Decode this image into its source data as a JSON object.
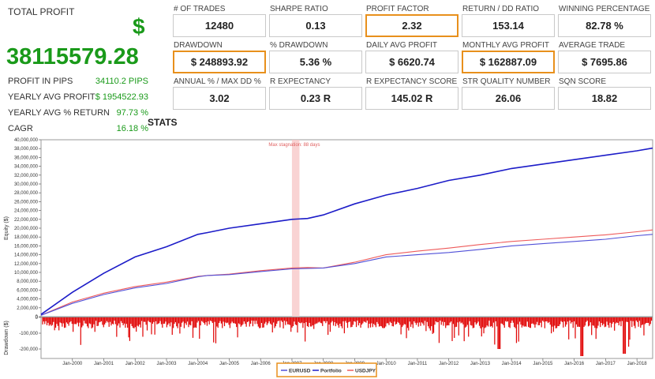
{
  "summary": {
    "total_profit_label": "TOTAL PROFIT",
    "currency_symbol": "$",
    "total_profit_value": "38115579.28",
    "rows": [
      {
        "label": "PROFIT IN PIPS",
        "value": "34110.2 PIPS"
      },
      {
        "label": "YEARLY AVG PROFIT",
        "value": "$ 1954522.93"
      },
      {
        "label": "YEARLY AVG % RETURN",
        "value": "97.73 %"
      },
      {
        "label": "CAGR",
        "value": "16.18 %"
      }
    ]
  },
  "stats_title": "STATS",
  "tiles": [
    {
      "label": "# OF TRADES",
      "value": "12480",
      "highlight": false
    },
    {
      "label": "SHARPE RATIO",
      "value": "0.13",
      "highlight": false
    },
    {
      "label": "PROFIT FACTOR",
      "value": "2.32",
      "highlight": true
    },
    {
      "label": "RETURN / DD RATIO",
      "value": "153.14",
      "highlight": false
    },
    {
      "label": "WINNING PERCENTAGE",
      "value": "82.78 %",
      "highlight": false
    },
    {
      "label": "DRAWDOWN",
      "value": "$ 248893.92",
      "highlight": true
    },
    {
      "label": "% DRAWDOWN",
      "value": "5.36 %",
      "highlight": false
    },
    {
      "label": "DAILY AVG PROFIT",
      "value": "$ 6620.74",
      "highlight": false
    },
    {
      "label": "MONTHLY AVG PROFIT",
      "value": "$ 162887.09",
      "highlight": true
    },
    {
      "label": "AVERAGE TRADE",
      "value": "$ 7695.86",
      "highlight": false
    },
    {
      "label": "ANNUAL % / MAX DD %",
      "value": "3.02",
      "highlight": false
    },
    {
      "label": "R EXPECTANCY",
      "value": "0.23 R",
      "highlight": false
    },
    {
      "label": "R EXPECTANCY SCORE",
      "value": "145.02 R",
      "highlight": false
    },
    {
      "label": "STR QUALITY NUMBER",
      "value": "26.06",
      "highlight": false
    },
    {
      "label": "SQN SCORE",
      "value": "18.82",
      "highlight": false
    }
  ],
  "colors": {
    "profit_green": "#1a9a1a",
    "highlight_orange": "#e8901c",
    "portfolio": "#1c1cc8",
    "eurusd": "#5050d8",
    "usdjpy": "#ee5a5a",
    "drawdown": "#e00000",
    "stagnation": "#f8c8c8"
  },
  "chart_data": {
    "type": "line",
    "ylabel": "Equity ($)",
    "drawdown_ylabel": "Drawdown ($)",
    "ylim": [
      0,
      40000000
    ],
    "y_ticks": [
      "0",
      "2,000,000",
      "4,000,000",
      "6,000,000",
      "8,000,000",
      "10,000,000",
      "12,000,000",
      "14,000,000",
      "16,000,000",
      "18,000,000",
      "20,000,000",
      "22,000,000",
      "24,000,000",
      "26,000,000",
      "28,000,000",
      "30,000,000",
      "32,000,000",
      "34,000,000",
      "36,000,000",
      "38,000,000",
      "40,000,000"
    ],
    "drawdown_ticks": [
      "0",
      "-100,000",
      "-200,000"
    ],
    "drawdown_ylim": [
      -260000,
      0
    ],
    "x_ticks": [
      "Jan-2000",
      "Jan-2001",
      "Jan-2002",
      "Jan-2003",
      "Jan-2004",
      "Jan-2005",
      "Jan-2006",
      "Jan-2007",
      "Jan-2008",
      "Jan-2009",
      "Jan-2010",
      "Jan-2011",
      "Jan-2012",
      "Jan-2013",
      "Jan-2014",
      "Jan-2015",
      "Jan-2016",
      "Jan-2017",
      "Jan-2018"
    ],
    "x_range": [
      1999.0,
      2018.5
    ],
    "stagnation_label": "Max stagnation: 88 days",
    "stagnation_range": [
      2007.0,
      2007.24
    ],
    "legend_position": "bottom-center",
    "x": [
      1999.0,
      2000.0,
      2001.0,
      2002.0,
      2003.0,
      2004.0,
      2004.3,
      2005.0,
      2006.0,
      2007.0,
      2007.5,
      2008.0,
      2009.0,
      2010.0,
      2011.0,
      2012.0,
      2013.0,
      2014.0,
      2015.0,
      2016.0,
      2017.0,
      2018.0,
      2018.5
    ],
    "series": [
      {
        "name": "Portfolio",
        "values": [
          0.5,
          5.5,
          9.8,
          13.5,
          15.8,
          18.6,
          19.0,
          20.0,
          21.0,
          22.0,
          22.2,
          23.0,
          25.5,
          27.5,
          29.0,
          30.8,
          32.0,
          33.5,
          34.5,
          35.5,
          36.5,
          37.5,
          38.1
        ]
      },
      {
        "name": "EURUSD",
        "values": [
          0.3,
          3.0,
          5.0,
          6.5,
          7.5,
          9.0,
          9.3,
          9.5,
          10.2,
          10.8,
          10.9,
          11.0,
          12.0,
          13.5,
          14.0,
          14.5,
          15.2,
          16.0,
          16.5,
          17.0,
          17.5,
          18.3,
          18.6
        ]
      },
      {
        "name": "USDJPY",
        "values": [
          0.3,
          3.3,
          5.3,
          6.8,
          7.8,
          9.1,
          9.3,
          9.6,
          10.4,
          11.0,
          11.1,
          11.0,
          12.3,
          14.0,
          14.8,
          15.5,
          16.3,
          17.0,
          17.5,
          18.0,
          18.5,
          19.2,
          19.6
        ]
      }
    ],
    "value_unit_note": "millions"
  }
}
